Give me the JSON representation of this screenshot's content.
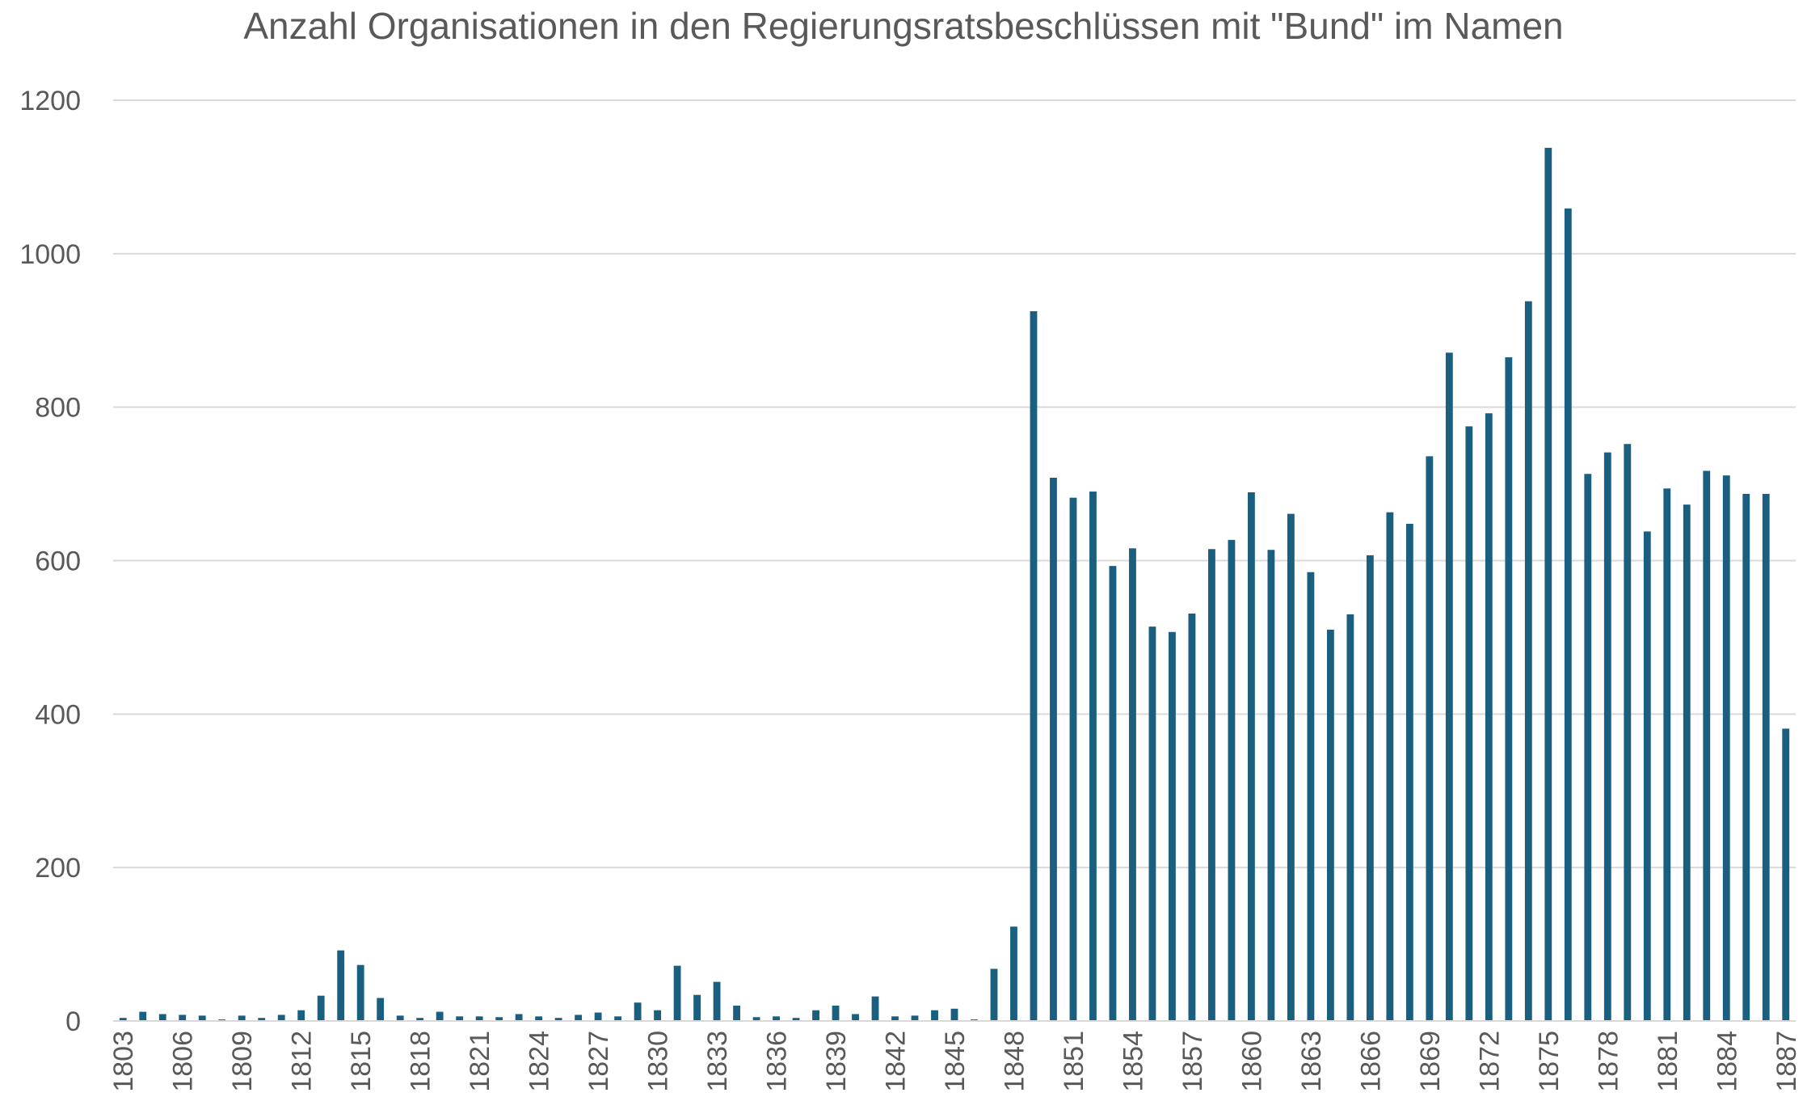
{
  "chart_data": {
    "type": "bar",
    "title": "Anzahl Organisationen in den Regierungsratsbeschlüssen mit \"Bund\" im Namen",
    "xlabel": "",
    "ylabel": "",
    "ylim": [
      0,
      1200
    ],
    "yticks": [
      "0",
      "200",
      "400",
      "600",
      "800",
      "1000",
      "1200"
    ],
    "grid": true,
    "bar_color": "#1a5e80",
    "categories": [
      "1803",
      "1804",
      "1805",
      "1806",
      "1807",
      "1808",
      "1809",
      "1810",
      "1811",
      "1812",
      "1813",
      "1814",
      "1815",
      "1816",
      "1817",
      "1818",
      "1819",
      "1820",
      "1821",
      "1822",
      "1823",
      "1824",
      "1825",
      "1826",
      "1827",
      "1828",
      "1829",
      "1830",
      "1831",
      "1832",
      "1833",
      "1834",
      "1835",
      "1836",
      "1837",
      "1838",
      "1839",
      "1840",
      "1841",
      "1842",
      "1843",
      "1844",
      "1845",
      "1846",
      "1847",
      "1848",
      "1849",
      "1850",
      "1851",
      "1852",
      "1853",
      "1854",
      "1855",
      "1856",
      "1857",
      "1858",
      "1859",
      "1860",
      "1861",
      "1862",
      "1863",
      "1864",
      "1865",
      "1866",
      "1867",
      "1868",
      "1869",
      "1870",
      "1871",
      "1872",
      "1873",
      "1874",
      "1875",
      "1876",
      "1877",
      "1878",
      "1879",
      "1880",
      "1881",
      "1882",
      "1883",
      "1884",
      "1885",
      "1886",
      "1887"
    ],
    "x_tick_labels": [
      "1803",
      "1806",
      "1809",
      "1812",
      "1815",
      "1818",
      "1821",
      "1824",
      "1827",
      "1830",
      "1833",
      "1836",
      "1839",
      "1842",
      "1845",
      "1848",
      "1851",
      "1854",
      "1857",
      "1860",
      "1863",
      "1866",
      "1869",
      "1872",
      "1875",
      "1878",
      "1881",
      "1884",
      "1887"
    ],
    "values": [
      4,
      12,
      9,
      8,
      7,
      2,
      7,
      4,
      8,
      14,
      33,
      92,
      73,
      30,
      7,
      4,
      12,
      6,
      6,
      5,
      9,
      6,
      4,
      8,
      11,
      6,
      24,
      14,
      72,
      34,
      51,
      20,
      5,
      6,
      4,
      14,
      20,
      9,
      32,
      6,
      7,
      14,
      16,
      2,
      68,
      123,
      925,
      708,
      682,
      690,
      593,
      616,
      514,
      507,
      531,
      615,
      627,
      689,
      614,
      661,
      585,
      510,
      530,
      607,
      663,
      648,
      736,
      871,
      775,
      792,
      865,
      938,
      1138,
      1059,
      713,
      741,
      752,
      638,
      694,
      673,
      717,
      711,
      687,
      687,
      381
    ],
    "series": [
      {
        "name": "",
        "values": [
          4,
          12,
          9,
          8,
          7,
          2,
          7,
          4,
          8,
          14,
          33,
          92,
          73,
          30,
          7,
          4,
          12,
          6,
          6,
          5,
          9,
          6,
          4,
          8,
          11,
          6,
          24,
          14,
          72,
          34,
          51,
          20,
          5,
          6,
          4,
          14,
          20,
          9,
          32,
          6,
          7,
          14,
          16,
          2,
          68,
          123,
          925,
          708,
          682,
          690,
          593,
          616,
          514,
          507,
          531,
          615,
          627,
          689,
          614,
          661,
          585,
          510,
          530,
          607,
          663,
          648,
          736,
          871,
          775,
          792,
          865,
          938,
          1138,
          1059,
          713,
          741,
          752,
          638,
          694,
          673,
          717,
          711,
          687,
          687,
          381
        ]
      }
    ]
  }
}
